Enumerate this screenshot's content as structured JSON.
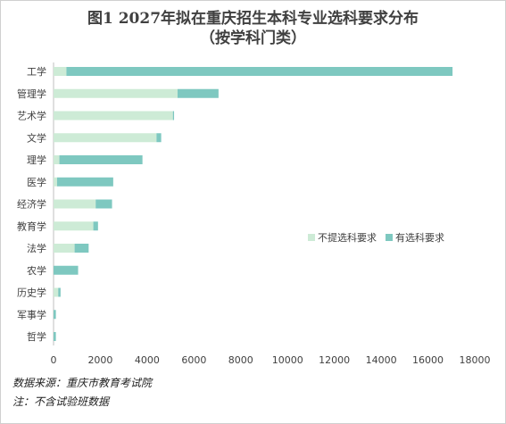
{
  "chart_data": {
    "type": "bar",
    "orientation": "horizontal",
    "stacked": true,
    "title": "图1 2027年拟在重庆招生本科专业选科要求分布",
    "subtitle": "（按学科门类）",
    "categories": [
      "工学",
      "管理学",
      "艺术学",
      "文学",
      "理学",
      "医学",
      "经济学",
      "教育学",
      "法学",
      "农学",
      "历史学",
      "军事学",
      "哲学"
    ],
    "series": [
      {
        "name": "不提选科要求",
        "color": "#cdebd6",
        "values": [
          550,
          5300,
          5100,
          4400,
          250,
          150,
          1800,
          1700,
          900,
          0,
          200,
          0,
          0
        ]
      },
      {
        "name": "有选科要求",
        "color": "#7ec8c0",
        "values": [
          16500,
          1750,
          50,
          200,
          3550,
          2400,
          700,
          200,
          600,
          1050,
          100,
          100,
          100
        ]
      }
    ],
    "xlim": [
      0,
      18000
    ],
    "xticks": [
      0,
      2000,
      4000,
      6000,
      8000,
      10000,
      12000,
      14000,
      16000,
      18000
    ],
    "grid": false,
    "legend_position": "right"
  },
  "notes": {
    "source": "数据来源：重庆市教育考试院",
    "remark": "注：不含试验班数据"
  }
}
